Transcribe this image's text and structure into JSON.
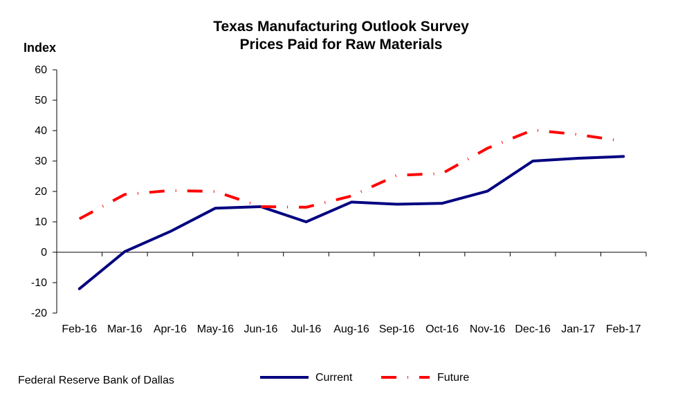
{
  "source_note": "Federal Reserve Bank of Dallas",
  "chart_data": {
    "type": "line",
    "title": [
      "Texas Manufacturing Outlook Survey",
      "Prices Paid for Raw Materials"
    ],
    "ylabel": "Index",
    "xlabel": "",
    "ylim": [
      -20,
      60
    ],
    "yticks": [
      -20,
      -10,
      0,
      10,
      20,
      30,
      40,
      50,
      60
    ],
    "categories": [
      "Feb-16",
      "Mar-16",
      "Apr-16",
      "May-16",
      "Jun-16",
      "Jul-16",
      "Aug-16",
      "Sep-16",
      "Oct-16",
      "Nov-16",
      "Dec-16",
      "Jan-17",
      "Feb-17"
    ],
    "grid": false,
    "legend_position": "bottom",
    "series": [
      {
        "name": "Current",
        "color": "#000080",
        "style": "solid",
        "values": [
          -12,
          0.2,
          6.8,
          14.5,
          15,
          10,
          16.5,
          15.8,
          16.1,
          20.1,
          30,
          30.9,
          31.5
        ]
      },
      {
        "name": "Future",
        "color": "#ff0000",
        "style": "dash-dot",
        "values": [
          11,
          19,
          20.3,
          20,
          15,
          14.8,
          18.5,
          25.3,
          25.9,
          34.2,
          40.2,
          38.7,
          36.5
        ]
      }
    ]
  }
}
